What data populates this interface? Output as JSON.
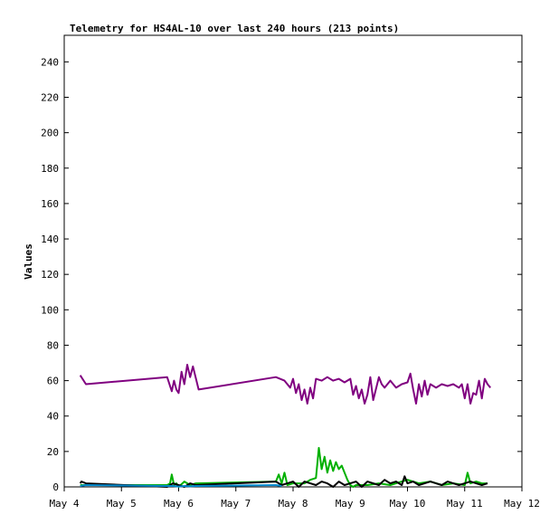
{
  "chart_data": {
    "type": "line",
    "title": "Telemetry for HS4AL-10 over last 240 hours (213 points)",
    "xlabel": "",
    "ylabel": "Values",
    "ylim": [
      0,
      255
    ],
    "y_ticks": [
      0,
      20,
      40,
      60,
      80,
      100,
      120,
      140,
      160,
      180,
      200,
      220,
      240
    ],
    "xlim": [
      4.0,
      12.0
    ],
    "x_ticks": [
      {
        "label": "May 4",
        "value": 4
      },
      {
        "label": "May 5",
        "value": 5
      },
      {
        "label": "May 6",
        "value": 6
      },
      {
        "label": "May 7",
        "value": 7
      },
      {
        "label": "May 8",
        "value": 8
      },
      {
        "label": "May 9",
        "value": 9
      },
      {
        "label": "May 10",
        "value": 10
      },
      {
        "label": "May 11",
        "value": 11
      },
      {
        "label": "May 12",
        "value": 12
      }
    ],
    "grid": false,
    "series": [
      {
        "color": "#800080",
        "x": [
          4.28,
          4.38,
          5.8,
          5.88,
          5.92,
          5.96,
          6.0,
          6.05,
          6.1,
          6.15,
          6.2,
          6.25,
          6.35,
          7.7,
          7.85,
          7.95,
          8.0,
          8.05,
          8.1,
          8.15,
          8.2,
          8.25,
          8.3,
          8.35,
          8.4,
          8.5,
          8.6,
          8.7,
          8.8,
          8.9,
          9.0,
          9.05,
          9.1,
          9.15,
          9.2,
          9.25,
          9.3,
          9.35,
          9.4,
          9.5,
          9.55,
          9.6,
          9.7,
          9.8,
          9.9,
          10.0,
          10.05,
          10.1,
          10.15,
          10.2,
          10.25,
          10.3,
          10.35,
          10.4,
          10.5,
          10.6,
          10.7,
          10.8,
          10.9,
          10.95,
          11.0,
          11.05,
          11.1,
          11.15,
          11.2,
          11.25,
          11.3,
          11.35,
          11.4,
          11.45
        ],
        "y": [
          63,
          58,
          62,
          54,
          60,
          55,
          53,
          65,
          58,
          69,
          62,
          68,
          55,
          62,
          60,
          56,
          61,
          53,
          58,
          49,
          55,
          47,
          56,
          50,
          61,
          60,
          62,
          60,
          61,
          59,
          61,
          52,
          57,
          50,
          55,
          47,
          52,
          62,
          49,
          62,
          58,
          56,
          60,
          56,
          58,
          59,
          64,
          55,
          47,
          58,
          51,
          60,
          52,
          58,
          56,
          58,
          57,
          58,
          56,
          58,
          50,
          58,
          47,
          53,
          52,
          60,
          50,
          61,
          58,
          56
        ]
      },
      {
        "color": "#00b000",
        "x": [
          4.28,
          5.8,
          5.85,
          5.88,
          5.92,
          5.96,
          6.0,
          6.1,
          6.2,
          6.3,
          7.7,
          7.75,
          7.8,
          7.85,
          7.9,
          8.0,
          8.2,
          8.3,
          8.4,
          8.45,
          8.5,
          8.55,
          8.6,
          8.65,
          8.7,
          8.75,
          8.8,
          8.85,
          8.9,
          8.95,
          9.0,
          9.05,
          9.1,
          9.3,
          9.5,
          9.7,
          9.9,
          10.0,
          10.2,
          10.4,
          10.6,
          10.8,
          11.0,
          11.05,
          11.1,
          11.2,
          11.3,
          11.4
        ],
        "y": [
          1,
          1,
          2,
          7,
          1,
          2,
          0,
          3,
          1,
          2,
          3,
          7,
          2,
          8,
          1,
          2,
          2,
          4,
          5,
          22,
          10,
          17,
          8,
          15,
          9,
          14,
          10,
          12,
          8,
          4,
          1,
          0,
          1,
          1,
          2,
          1,
          3,
          4,
          2,
          3,
          1,
          2,
          1,
          8,
          2,
          3,
          2,
          2
        ]
      },
      {
        "color": "#000000",
        "x": [
          4.28,
          4.3,
          4.38,
          5.8,
          5.9,
          6.0,
          6.1,
          6.2,
          6.3,
          7.7,
          7.8,
          7.9,
          8.0,
          8.1,
          8.2,
          8.3,
          8.4,
          8.5,
          8.6,
          8.7,
          8.8,
          8.9,
          9.0,
          9.1,
          9.2,
          9.3,
          9.4,
          9.5,
          9.6,
          9.7,
          9.8,
          9.9,
          9.95,
          10.0,
          10.1,
          10.2,
          10.3,
          10.4,
          10.5,
          10.6,
          10.7,
          10.8,
          10.9,
          11.0,
          11.1,
          11.2,
          11.3,
          11.4
        ],
        "y": [
          2,
          3,
          2,
          0,
          2,
          1,
          0,
          2,
          1,
          3,
          1,
          2,
          3,
          0,
          3,
          2,
          1,
          3,
          2,
          0,
          3,
          1,
          2,
          3,
          0,
          3,
          2,
          1,
          4,
          2,
          3,
          1,
          6,
          2,
          3,
          1,
          2,
          3,
          2,
          1,
          3,
          2,
          1,
          2,
          3,
          2,
          1,
          2
        ]
      },
      {
        "color": "#0088cc",
        "x": [
          4.28,
          4.38,
          5.8,
          5.9,
          6.0,
          6.1,
          6.2,
          6.3,
          7.7,
          7.8
        ],
        "y": [
          0.5,
          1,
          0.5,
          0.5,
          0.2,
          0.5,
          0.3,
          0.5,
          1,
          0.5
        ]
      }
    ]
  }
}
